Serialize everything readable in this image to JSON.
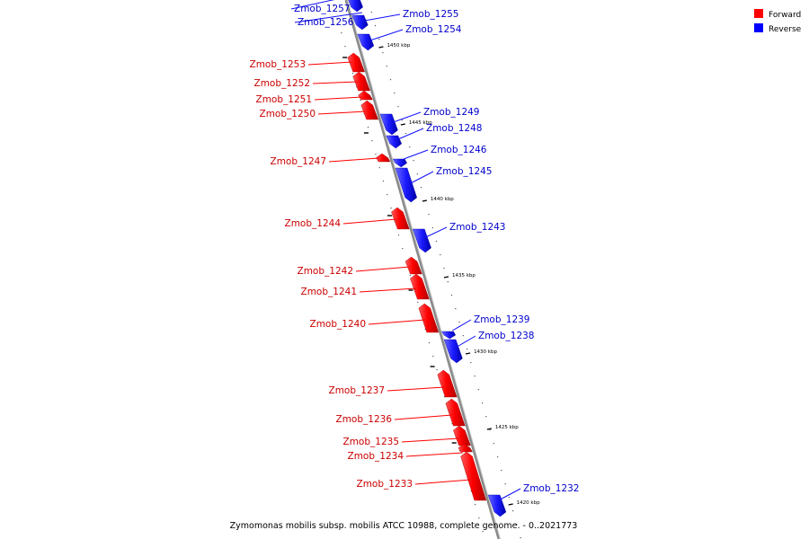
{
  "legend": [
    {
      "label": "Forward",
      "color": "#ff0000"
    },
    {
      "label": "Reverse",
      "color": "#0000ff"
    }
  ],
  "caption": "Zymomonas mobilis subsp. mobilis ATCC 10988, complete genome. - 0..2021773",
  "colors": {
    "forward": "#ff0000",
    "reverse": "#1010ff",
    "axis": "#909090"
  },
  "ticks": [
    {
      "label": "1450 kbp"
    },
    {
      "label": "1445 kbp"
    },
    {
      "label": "1440 kbp"
    },
    {
      "label": "1435 kbp"
    },
    {
      "label": "1430 kbp"
    },
    {
      "label": "1425 kbp"
    },
    {
      "label": "1420 kbp"
    }
  ],
  "genes": [
    {
      "name": "Zmob_1257",
      "strand": "reverse"
    },
    {
      "name": "Zmob_1256",
      "strand": "reverse"
    },
    {
      "name": "Zmob_1255",
      "strand": "reverse"
    },
    {
      "name": "Zmob_1254",
      "strand": "reverse"
    },
    {
      "name": "Zmob_1253",
      "strand": "forward"
    },
    {
      "name": "Zmob_1252",
      "strand": "forward"
    },
    {
      "name": "Zmob_1251",
      "strand": "forward"
    },
    {
      "name": "Zmob_1250",
      "strand": "forward"
    },
    {
      "name": "Zmob_1249",
      "strand": "reverse"
    },
    {
      "name": "Zmob_1248",
      "strand": "reverse"
    },
    {
      "name": "Zmob_1247",
      "strand": "forward"
    },
    {
      "name": "Zmob_1246",
      "strand": "reverse"
    },
    {
      "name": "Zmob_1245",
      "strand": "reverse"
    },
    {
      "name": "Zmob_1244",
      "strand": "forward"
    },
    {
      "name": "Zmob_1243",
      "strand": "reverse"
    },
    {
      "name": "Zmob_1242",
      "strand": "forward"
    },
    {
      "name": "Zmob_1241",
      "strand": "forward"
    },
    {
      "name": "Zmob_1240",
      "strand": "forward"
    },
    {
      "name": "Zmob_1239",
      "strand": "reverse"
    },
    {
      "name": "Zmob_1238",
      "strand": "reverse"
    },
    {
      "name": "Zmob_1237",
      "strand": "forward"
    },
    {
      "name": "Zmob_1236",
      "strand": "forward"
    },
    {
      "name": "Zmob_1235",
      "strand": "forward"
    },
    {
      "name": "Zmob_1234",
      "strand": "forward"
    },
    {
      "name": "Zmob_1233",
      "strand": "forward"
    },
    {
      "name": "Zmob_1232",
      "strand": "reverse"
    }
  ]
}
